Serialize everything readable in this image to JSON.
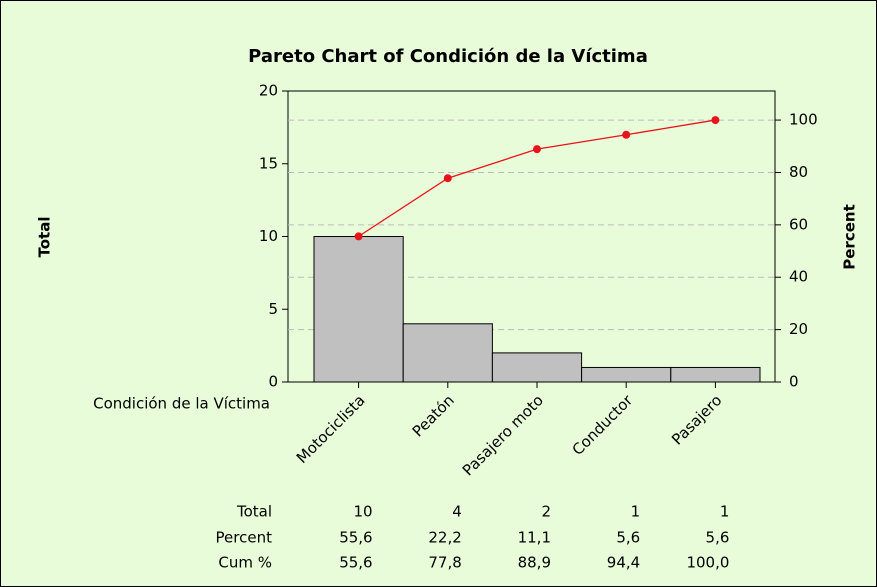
{
  "chart_data": {
    "type": "pareto",
    "title": "Pareto Chart of Condición de la Víctima",
    "xlabel": "Condición de la Víctima",
    "ylabel": "Total",
    "y2label": "Percent",
    "categories": [
      "Motociclista",
      "Peatón",
      "Pasajero moto",
      "Conductor",
      "Pasajero"
    ],
    "series": [
      {
        "name": "Total",
        "color": "#c0c0c0",
        "values": [
          10,
          4,
          2,
          1,
          1
        ]
      },
      {
        "name": "Percent",
        "values": [
          55.6,
          22.2,
          11.1,
          5.6,
          5.6
        ],
        "value_labels": [
          "55,6",
          "22,2",
          "11,1",
          "5,6",
          "5,6"
        ]
      },
      {
        "name": "Cum %",
        "color": "#e8141c",
        "axis": "y2",
        "values": [
          55.6,
          77.8,
          88.9,
          94.4,
          100.0
        ],
        "value_labels": [
          "55,6",
          "77,8",
          "88,9",
          "94,4",
          "100,0"
        ]
      }
    ],
    "ylim": [
      0,
      20
    ],
    "yticks": [
      0,
      5,
      10,
      15,
      20
    ],
    "y2lim": [
      0,
      111.1
    ],
    "y2ticks": [
      0,
      20,
      40,
      60,
      80,
      100
    ],
    "grid": "y2"
  }
}
